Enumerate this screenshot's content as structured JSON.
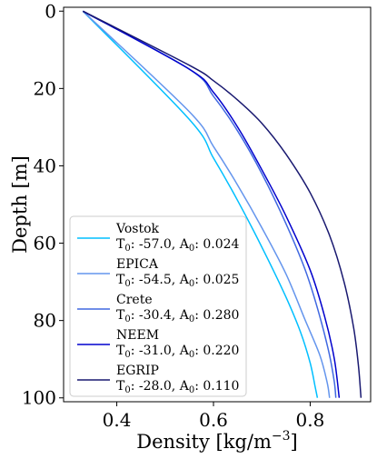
{
  "chart_data": {
    "type": "line",
    "xlabel": "Density [kg/m$^{-3}$]",
    "xlabel_parts": {
      "main": "Density [kg/m",
      "sup": "−3",
      "tail": "]"
    },
    "ylabel": "Depth [m]",
    "xlim": [
      0.29,
      0.925
    ],
    "ylim": [
      101,
      -1
    ],
    "y_inverted": true,
    "xticks": [
      0.4,
      0.6,
      0.8
    ],
    "xtick_labels": [
      "0.4",
      "0.6",
      "0.8"
    ],
    "yticks": [
      0,
      20,
      40,
      60,
      80,
      100
    ],
    "ytick_labels": [
      "0",
      "20",
      "40",
      "60",
      "80",
      "100"
    ],
    "grid": false,
    "legend_placement": "lower-left",
    "series": [
      {
        "name": "Vostok",
        "params": "T0: -57.0, A0: 0.024",
        "T0": "-57.0",
        "A0": "0.024",
        "color": "#00bfff",
        "points": [
          [
            0.33,
            0
          ],
          [
            0.55,
            28
          ],
          [
            0.6,
            38
          ],
          [
            0.65,
            49
          ],
          [
            0.7,
            61
          ],
          [
            0.75,
            74
          ],
          [
            0.78,
            83
          ],
          [
            0.8,
            91
          ],
          [
            0.81,
            97
          ],
          [
            0.815,
            100
          ]
        ]
      },
      {
        "name": "EPICA",
        "params": "T0: -54.5, A0: 0.025",
        "T0": "-54.5",
        "A0": "0.025",
        "color": "#6495ed",
        "points": [
          [
            0.33,
            0
          ],
          [
            0.55,
            26
          ],
          [
            0.6,
            35
          ],
          [
            0.65,
            45
          ],
          [
            0.7,
            56
          ],
          [
            0.75,
            68
          ],
          [
            0.79,
            80
          ],
          [
            0.82,
            89
          ],
          [
            0.835,
            96
          ],
          [
            0.84,
            100
          ]
        ]
      },
      {
        "name": "Crete",
        "params": "T0: -30.4, A0: 0.280",
        "T0": "-30.4",
        "A0": "0.280",
        "color": "#4169e1",
        "points": [
          [
            0.33,
            0
          ],
          [
            0.55,
            15
          ],
          [
            0.6,
            22
          ],
          [
            0.65,
            31
          ],
          [
            0.7,
            42
          ],
          [
            0.75,
            55
          ],
          [
            0.79,
            67
          ],
          [
            0.82,
            79
          ],
          [
            0.84,
            89
          ],
          [
            0.85,
            96
          ],
          [
            0.853,
            100
          ]
        ]
      },
      {
        "name": "NEEM",
        "params": "T0: -31.0, A0: 0.220",
        "T0": "-31.0",
        "A0": "0.220",
        "color": "#0000cd",
        "points": [
          [
            0.33,
            0
          ],
          [
            0.55,
            15
          ],
          [
            0.6,
            21
          ],
          [
            0.65,
            30
          ],
          [
            0.7,
            41
          ],
          [
            0.75,
            53
          ],
          [
            0.8,
            67
          ],
          [
            0.83,
            79
          ],
          [
            0.85,
            90
          ],
          [
            0.86,
            100
          ]
        ]
      },
      {
        "name": "EGRIP",
        "params": "T0: -28.0, A0: 0.110",
        "T0": "-28.0",
        "A0": "0.110",
        "color": "#191970",
        "points": [
          [
            0.33,
            0
          ],
          [
            0.55,
            14
          ],
          [
            0.6,
            18
          ],
          [
            0.65,
            23
          ],
          [
            0.7,
            29
          ],
          [
            0.75,
            37
          ],
          [
            0.8,
            47
          ],
          [
            0.84,
            58
          ],
          [
            0.87,
            70
          ],
          [
            0.89,
            82
          ],
          [
            0.9,
            92
          ],
          [
            0.905,
            100
          ]
        ]
      }
    ]
  }
}
